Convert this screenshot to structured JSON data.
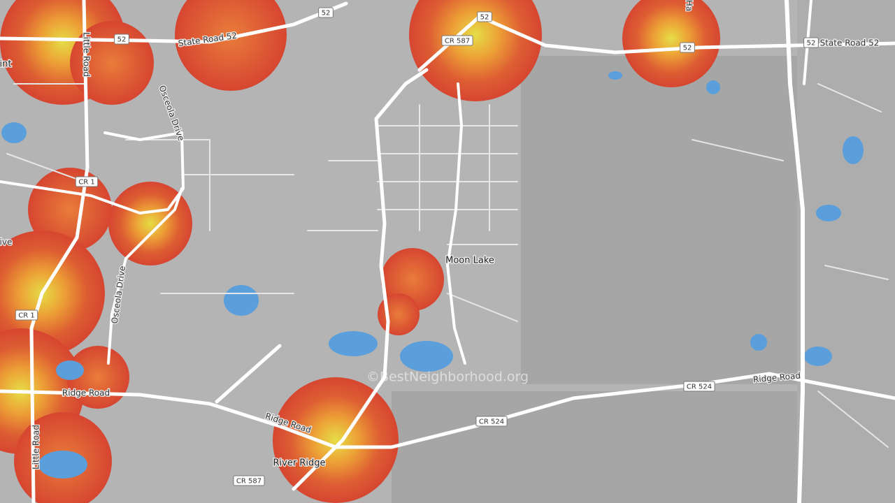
{
  "labels": [
    "State Road 52",
    "State Road 52",
    "Little Road",
    "Little Road",
    "Osceola Drive",
    "Osceola Drive",
    "Moon Lake",
    "River Ridge",
    "Ridge Road",
    "Ridge Road",
    "Ridge Road",
    "int",
    "rive",
    "Ha"
  ],
  "shields": [
    "52",
    "52",
    "52",
    "52",
    "52",
    "CR 587",
    "CR 587",
    "CR 1",
    "CR 1",
    "CR 524",
    "CR 524"
  ],
  "watermark": "©BestNeighborhood.org"
}
